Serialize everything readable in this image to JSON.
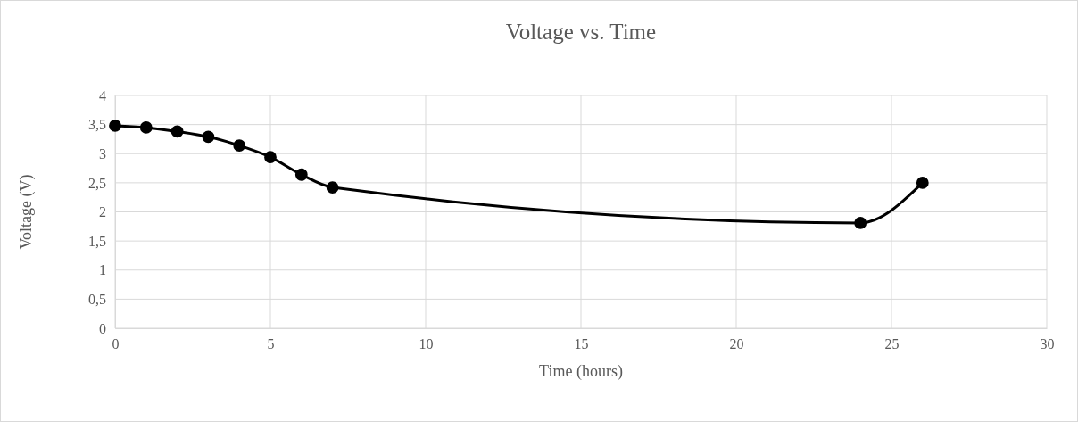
{
  "chart_data": {
    "type": "line",
    "title": "Voltage vs. Time",
    "xlabel": "Time (hours)",
    "ylabel": "Voltage (V)",
    "x": [
      0,
      1,
      2,
      3,
      4,
      5,
      6,
      7,
      24,
      26
    ],
    "series": [
      {
        "color": "#000000",
        "values": [
          3.48,
          3.45,
          3.38,
          3.29,
          3.14,
          2.94,
          2.64,
          2.42,
          1.81,
          2.5
        ]
      }
    ],
    "xlim": [
      0,
      30
    ],
    "xticks": [
      0,
      5,
      10,
      15,
      20,
      25,
      30
    ],
    "ylim": [
      0,
      4
    ],
    "yticks": [
      0,
      {
        "value": 0.5,
        "label": "0,5"
      },
      1,
      {
        "value": 1.5,
        "label": "1,5"
      },
      2,
      {
        "value": 2.5,
        "label": "2,5"
      },
      3,
      {
        "value": 3.5,
        "label": "3,5"
      },
      4
    ],
    "grid": true,
    "marker": "circle",
    "line_style": "solid"
  }
}
